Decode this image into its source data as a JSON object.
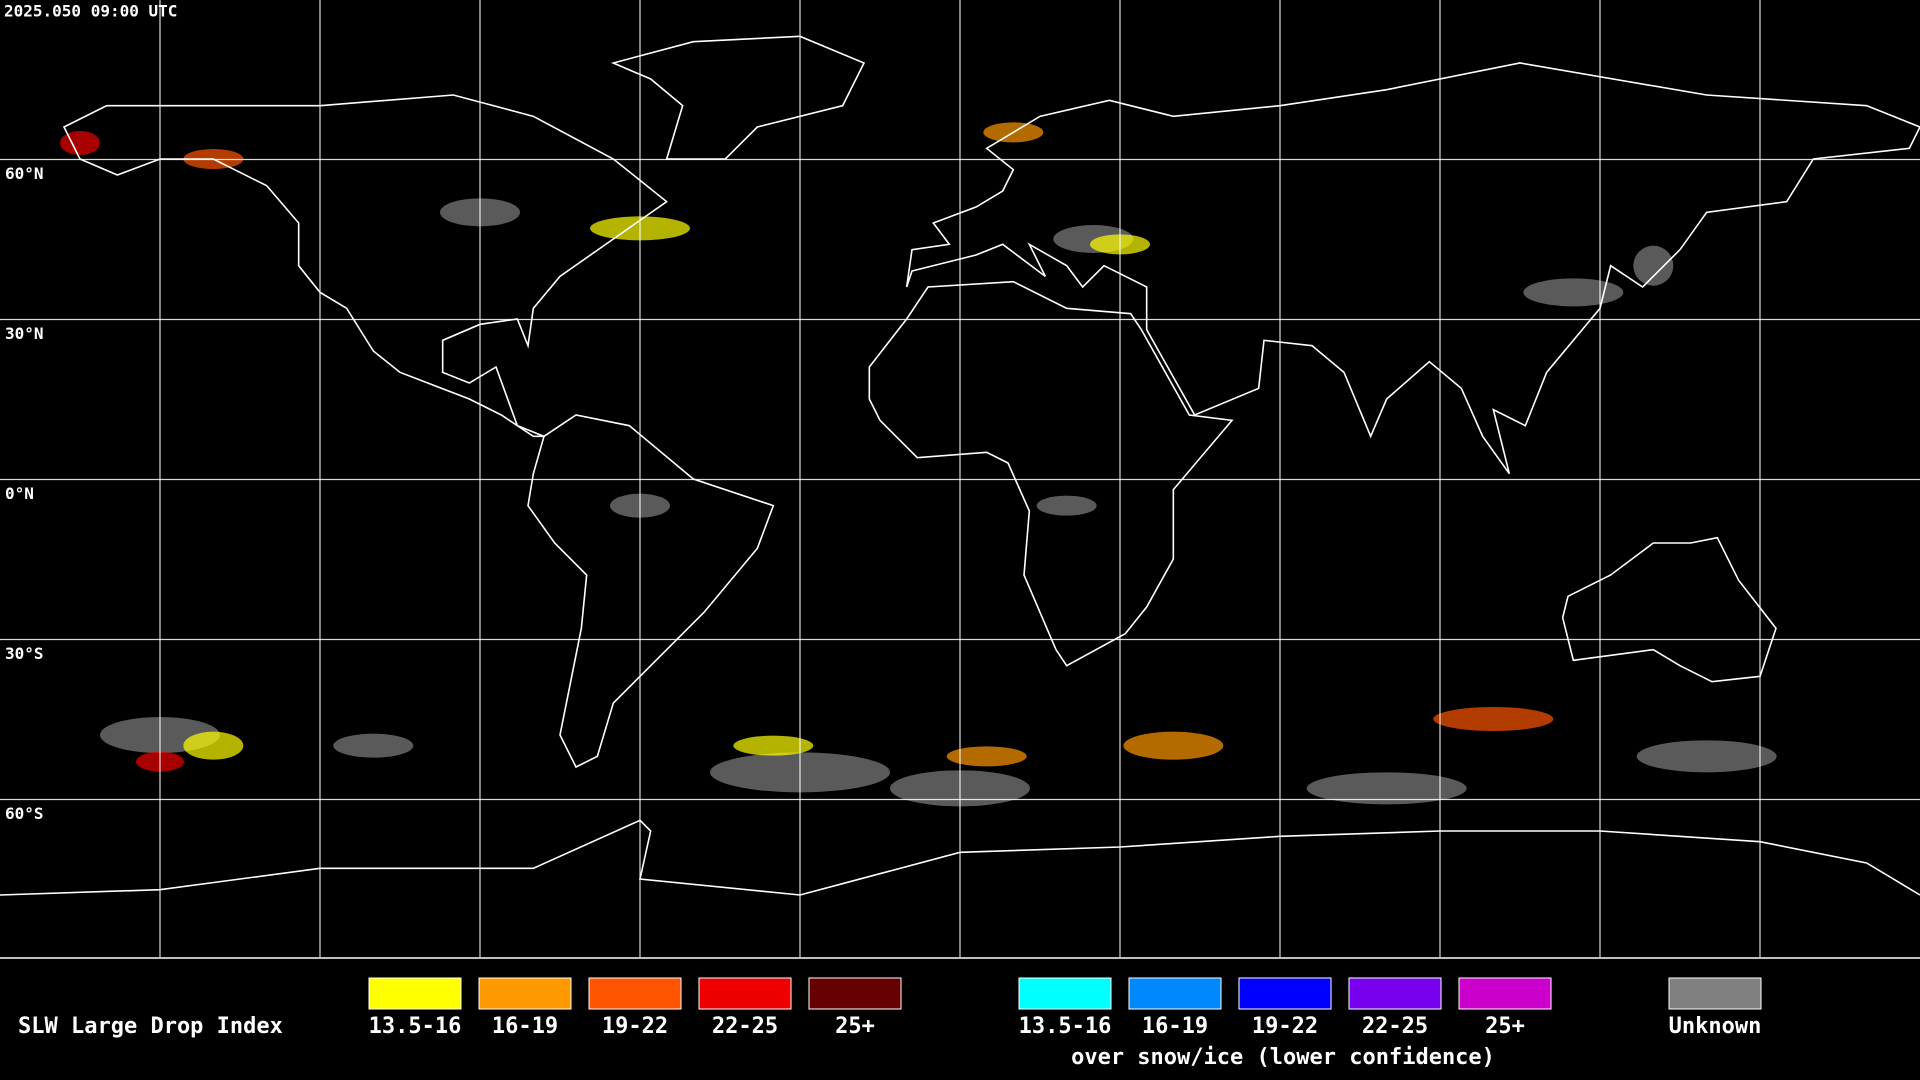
{
  "header": {
    "timestamp": "2025.050 09:00 UTC"
  },
  "map": {
    "lat_labels": [
      "60°N",
      "30°N",
      "0°N",
      "30°S",
      "60°S"
    ]
  },
  "legend": {
    "title": "SLW Large Drop Index",
    "normal": [
      {
        "label": "13.5-16",
        "color": "#ffff00"
      },
      {
        "label": "16-19",
        "color": "#ff9900"
      },
      {
        "label": "19-22",
        "color": "#ff5500"
      },
      {
        "label": "22-25",
        "color": "#ee0000"
      },
      {
        "label": "25+",
        "color": "#660000"
      }
    ],
    "snow_ice": [
      {
        "label": "13.5-16",
        "color": "#00ffff"
      },
      {
        "label": "16-19",
        "color": "#0088ff"
      },
      {
        "label": "19-22",
        "color": "#0000ff"
      },
      {
        "label": "22-25",
        "color": "#7700ee"
      },
      {
        "label": "25+",
        "color": "#cc00cc"
      }
    ],
    "snow_ice_caption": "over snow/ice (lower confidence)",
    "unknown": {
      "label": "Unknown",
      "color": "#808080"
    }
  }
}
